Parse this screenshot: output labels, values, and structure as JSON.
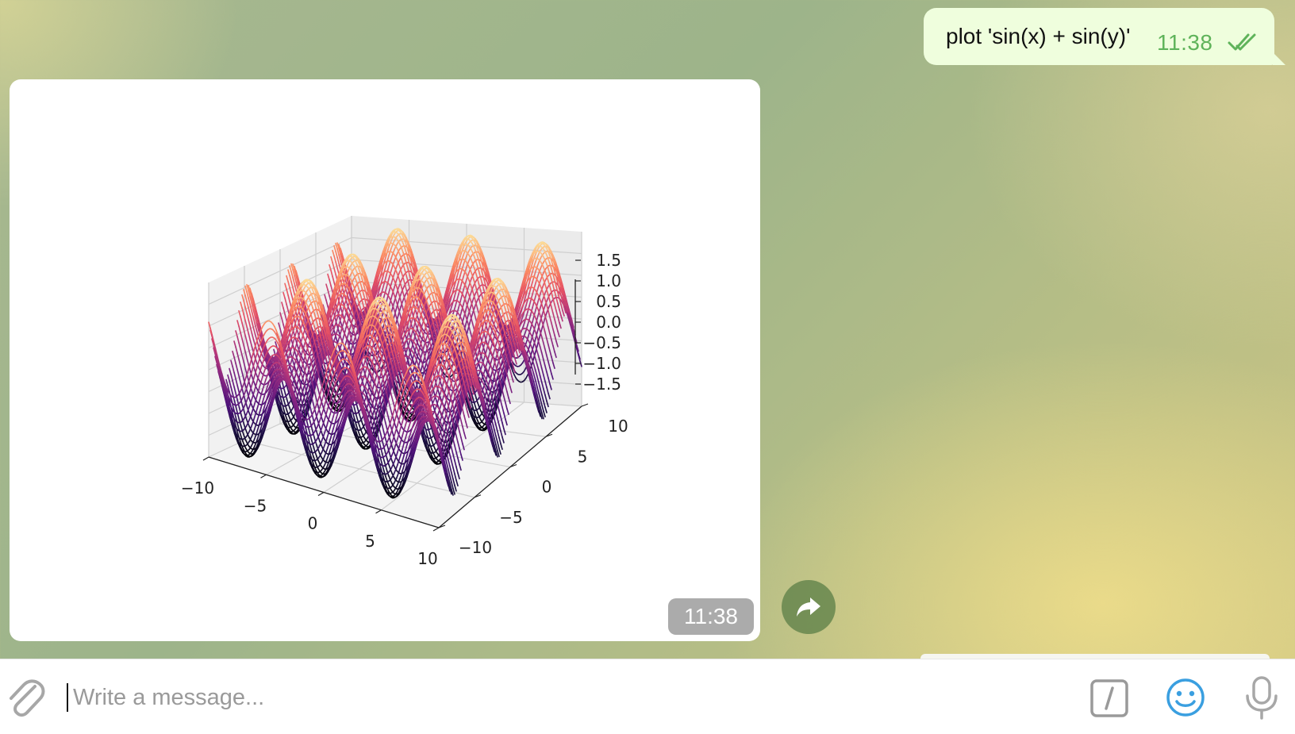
{
  "colors": {
    "outgoing_bubble": "#effedd",
    "outgoing_time": "#5fb35a",
    "accent_blue": "#3a9fe0",
    "forward_button": "#6a8a56",
    "chart_low": "#1c0a40",
    "chart_mid": "#b43a7c",
    "chart_high": "#fcb072"
  },
  "outgoing_message": {
    "text": "plot 'sin(x) + sin(y)'",
    "time": "11:38",
    "status_icon": "double-check-icon"
  },
  "incoming_message": {
    "time": "11:38",
    "forward_icon": "share-arrow-icon"
  },
  "composer": {
    "placeholder": "Write a message...",
    "value": "",
    "icons": [
      "paperclip-icon",
      "slash-command-icon",
      "smiley-icon",
      "microphone-icon"
    ]
  },
  "chart_data": {
    "type": "surface3d",
    "function": "sin(x) + sin(y)",
    "colormap": "magma",
    "grid": true,
    "x_ticks": [
      "−10",
      "−5",
      "0",
      "5",
      "10"
    ],
    "y_ticks": [
      "−10",
      "−5",
      "0",
      "5",
      "10"
    ],
    "z_ticks": [
      "1.5",
      "1.0",
      "0.5",
      "0.0",
      "−0.5",
      "−1.0",
      "−1.5"
    ],
    "x_range": [
      -10,
      10
    ],
    "y_range": [
      -10,
      10
    ],
    "z_range": [
      -2,
      2
    ]
  }
}
